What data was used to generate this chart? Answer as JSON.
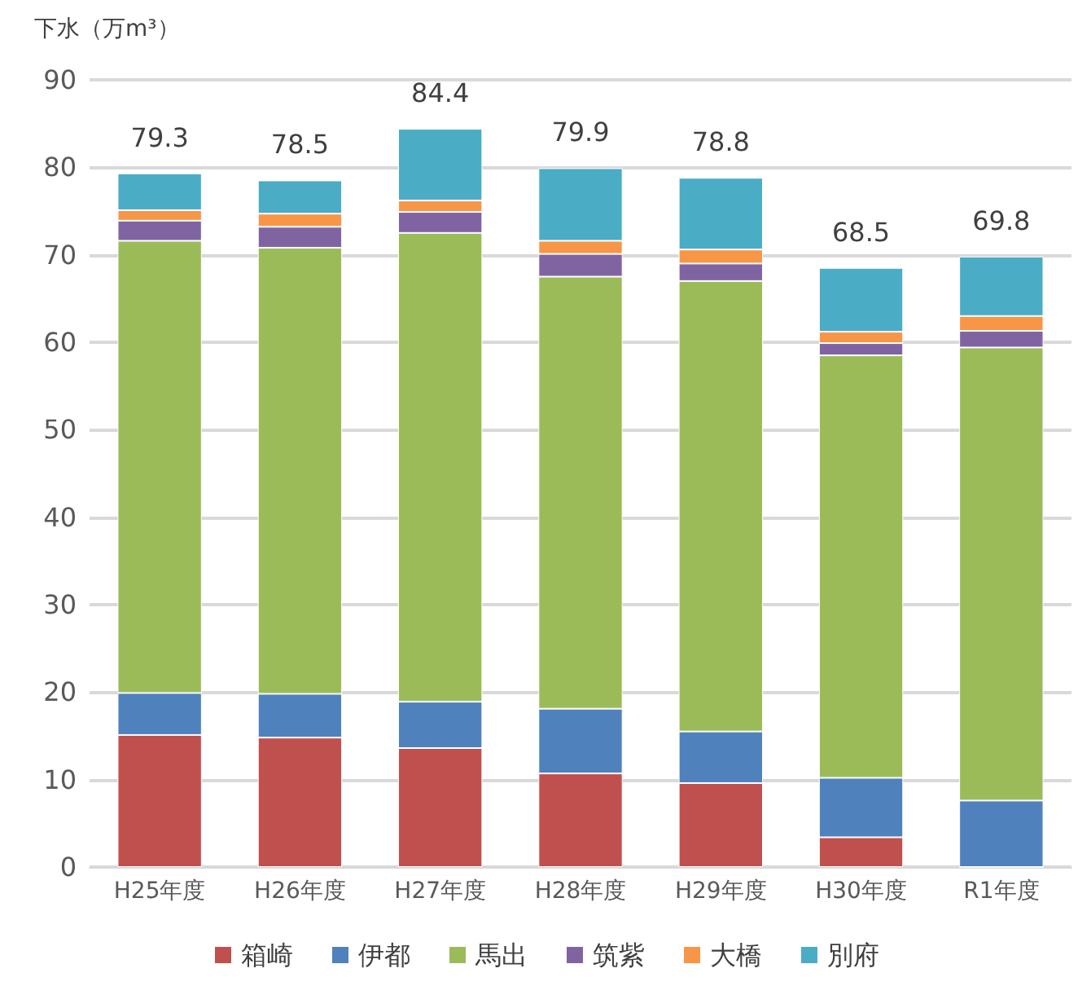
{
  "chart_data": {
    "type": "bar",
    "stacked": true,
    "ylabel": "下水（万m³）",
    "categories": [
      "H25年度",
      "H26年度",
      "H27年度",
      "H28年度",
      "H29年度",
      "H30年度",
      "R1年度"
    ],
    "series": [
      {
        "name": "箱崎",
        "color": "#c0504d",
        "values": [
          15.1,
          14.8,
          13.6,
          10.7,
          9.6,
          3.4,
          0
        ]
      },
      {
        "name": "伊都",
        "color": "#4f81bd",
        "values": [
          4.8,
          5.0,
          5.3,
          7.4,
          5.9,
          6.8,
          7.6
        ]
      },
      {
        "name": "馬出",
        "color": "#9bbb59",
        "values": [
          51.7,
          51.0,
          53.6,
          49.4,
          51.5,
          48.3,
          51.8
        ]
      },
      {
        "name": "筑紫",
        "color": "#8064a2",
        "values": [
          2.3,
          2.4,
          2.4,
          2.6,
          2.0,
          1.4,
          1.9
        ]
      },
      {
        "name": "大橋",
        "color": "#f79646",
        "values": [
          1.2,
          1.5,
          1.3,
          1.5,
          1.6,
          1.3,
          1.7
        ]
      },
      {
        "name": "別府",
        "color": "#4bacc6",
        "values": [
          4.2,
          3.8,
          8.2,
          8.3,
          8.2,
          7.3,
          6.8
        ]
      }
    ],
    "totals": [
      "79.3",
      "78.5",
      "84.4",
      "79.9",
      "78.8",
      "68.5",
      "69.8"
    ],
    "ylim": [
      0,
      90
    ],
    "yticks": [
      0,
      10,
      20,
      30,
      40,
      50,
      60,
      70,
      80,
      90
    ],
    "grid": "y",
    "legend": "bottom"
  }
}
